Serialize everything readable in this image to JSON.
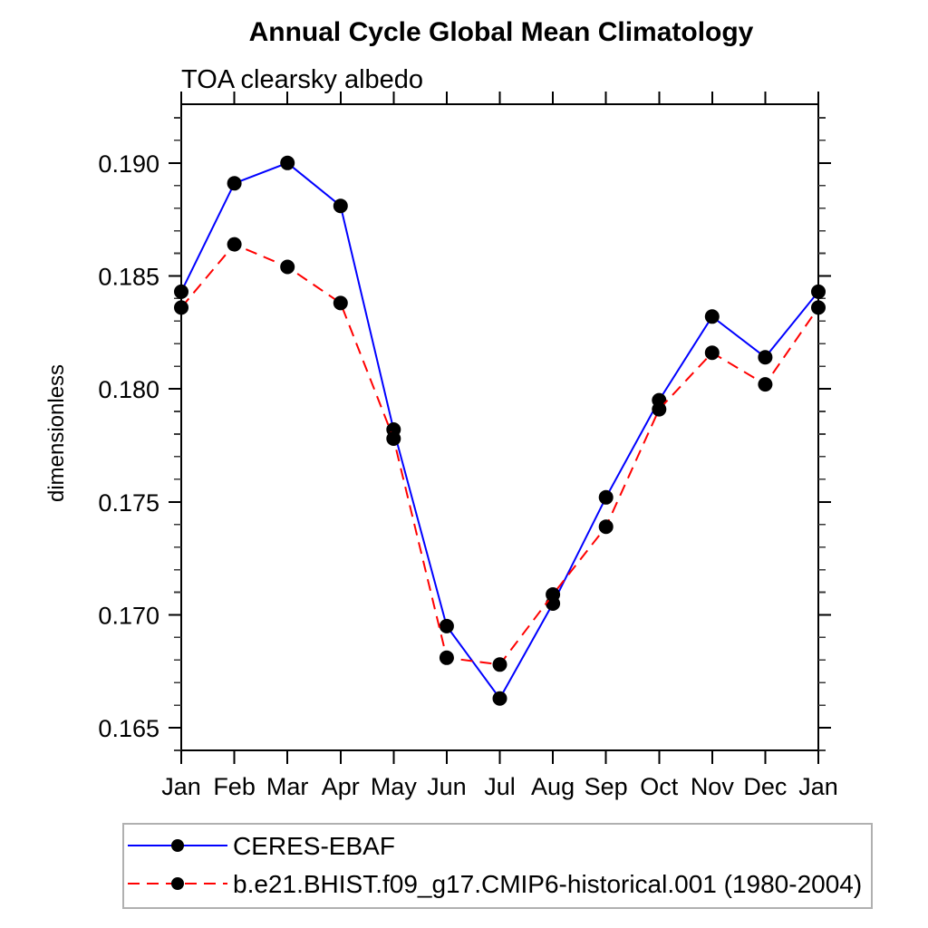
{
  "chart_data": {
    "type": "line",
    "title": "Annual Cycle Global Mean Climatology",
    "subtitle": "TOA clearsky albedo",
    "ylabel": "dimensionless",
    "xlabel": "",
    "categories": [
      "Jan",
      "Feb",
      "Mar",
      "Apr",
      "May",
      "Jun",
      "Jul",
      "Aug",
      "Sep",
      "Oct",
      "Nov",
      "Dec",
      "Jan"
    ],
    "ylim": [
      0.164,
      0.1926
    ],
    "yticks": [
      0.165,
      0.17,
      0.175,
      0.18,
      0.185,
      0.19
    ],
    "ytick_labels": [
      "0.165",
      "0.170",
      "0.175",
      "0.180",
      "0.185",
      "0.190"
    ],
    "y_minor_step": 0.001,
    "grid": false,
    "legend_position": "below-plot-left",
    "axis_color": "#000000",
    "legend_border_color": "#b0b0b0",
    "series": [
      {
        "name": "CERES-EBAF",
        "color": "#0000ff",
        "line_style": "solid",
        "marker": "filled-circle",
        "marker_color": "#000000",
        "values": [
          0.1843,
          0.1891,
          0.19,
          0.1881,
          0.1782,
          0.1695,
          0.1663,
          0.1705,
          0.1752,
          0.1795,
          0.1832,
          0.1814,
          0.1843
        ]
      },
      {
        "name": "b.e21.BHIST.f09_g17.CMIP6-historical.001 (1980-2004)",
        "color": "#ff0000",
        "line_style": "dashed",
        "marker": "filled-circle",
        "marker_color": "#000000",
        "values": [
          0.1836,
          0.1864,
          0.1854,
          0.1838,
          0.1778,
          0.1681,
          0.1678,
          0.1709,
          0.1739,
          0.1791,
          0.1816,
          0.1802,
          0.1836
        ]
      }
    ]
  }
}
